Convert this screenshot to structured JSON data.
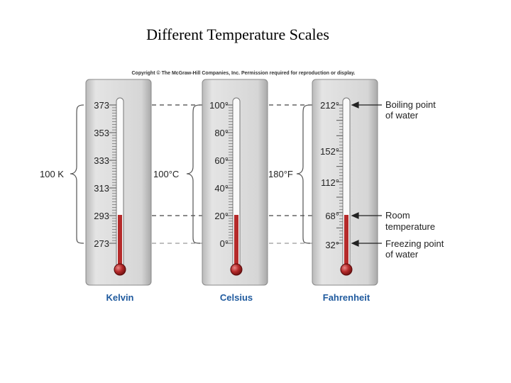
{
  "title": "Different Temperature Scales",
  "copyright": "Copyright © The McGraw-Hill Companies, Inc. Permission required for reproduction or display.",
  "thermometers": [
    {
      "name": "Kelvin",
      "labels": [
        "373",
        "353",
        "333",
        "313",
        "293",
        "273"
      ]
    },
    {
      "name": "Celsius",
      "labels": [
        "100°",
        "80°",
        "60°",
        "40°",
        "20°",
        "0°"
      ]
    },
    {
      "name": "Fahrenheit",
      "labels": [
        "212°",
        "152°",
        "112°",
        "68°",
        "32°"
      ]
    }
  ],
  "ranges": {
    "kelvin": "100 K",
    "celsius": "100°C",
    "fahrenheit": "180°F"
  },
  "annotations": {
    "boiling": [
      "Boiling point",
      "of water"
    ],
    "room": [
      "Room",
      "temperature"
    ],
    "freezing": [
      "Freezing point",
      "of water"
    ]
  },
  "colors": {
    "mercury": "#b52a2a",
    "panel": "#d0d0d0",
    "dash": "#444444",
    "label_blue": "#1f5a9e"
  }
}
